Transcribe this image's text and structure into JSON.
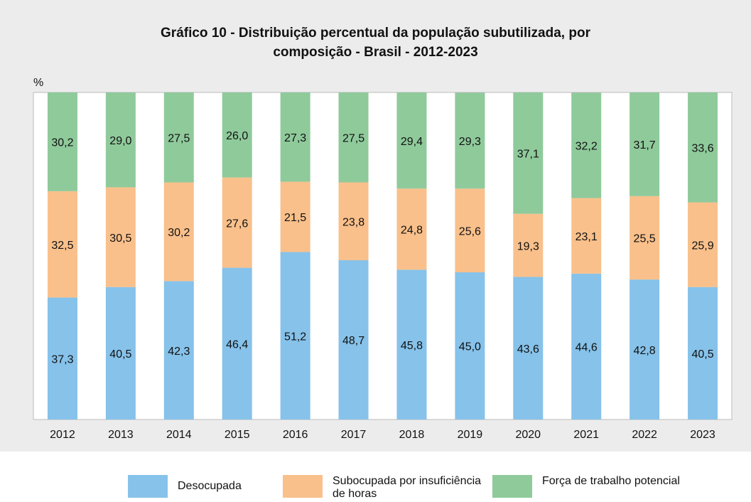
{
  "chart_data": {
    "type": "stacked_bar",
    "title": "Gráfico 10 - Distribuição percentual da população subutilizada, por composição - Brasil - 2012-2023",
    "y_label": "%",
    "categories": [
      "2012",
      "2013",
      "2014",
      "2015",
      "2016",
      "2017",
      "2018",
      "2019",
      "2020",
      "2021",
      "2022",
      "2023"
    ],
    "series": [
      {
        "name": "Desocupada",
        "color": "#86c2ea",
        "values": [
          37.3,
          40.5,
          42.3,
          46.4,
          51.2,
          48.7,
          45.8,
          45.0,
          43.6,
          44.6,
          42.8,
          40.5
        ],
        "value_labels": [
          "37,3",
          "40,5",
          "42,3",
          "46,4",
          "51,2",
          "48,7",
          "45,8",
          "45,0",
          "43,6",
          "44,6",
          "42,8",
          "40,5"
        ]
      },
      {
        "name": "Subocupada por insuficiência de horas",
        "color": "#f9c08b",
        "values": [
          32.5,
          30.5,
          30.2,
          27.6,
          21.5,
          23.8,
          24.8,
          25.6,
          19.3,
          23.1,
          25.5,
          25.9
        ],
        "value_labels": [
          "32,5",
          "30,5",
          "30,2",
          "27,6",
          "21,5",
          "23,8",
          "24,8",
          "25,6",
          "19,3",
          "23,1",
          "25,5",
          "25,9"
        ]
      },
      {
        "name": "Força de trabalho potencial",
        "color": "#8fca9b",
        "values": [
          30.2,
          29.0,
          27.5,
          26.0,
          27.3,
          27.5,
          29.4,
          29.3,
          37.1,
          32.2,
          31.7,
          33.6
        ],
        "value_labels": [
          "30,2",
          "29,0",
          "27,5",
          "26,0",
          "27,3",
          "27,5",
          "29,4",
          "29,3",
          "37,1",
          "32,2",
          "31,7",
          "33,6"
        ]
      }
    ],
    "ylim": [
      0,
      100
    ]
  }
}
